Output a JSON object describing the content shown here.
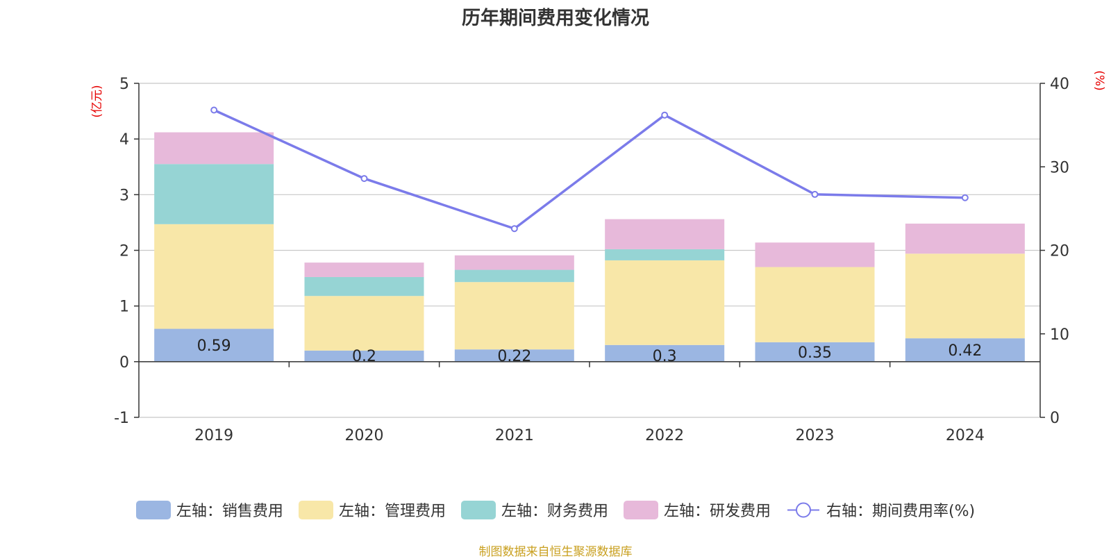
{
  "title": "历年期间费用变化情况",
  "source_note": "制图数据来自恒生聚源数据库",
  "chart_data": {
    "type": "bar",
    "stacked": true,
    "categories": [
      "2019",
      "2020",
      "2021",
      "2022",
      "2023",
      "2024"
    ],
    "left_axis": {
      "label": "(亿元)",
      "range": [
        -1,
        5
      ],
      "ticks": [
        -1,
        0,
        1,
        2,
        3,
        4,
        5
      ]
    },
    "right_axis": {
      "label": "(%)",
      "range": [
        0,
        40
      ],
      "ticks": [
        0,
        10,
        20,
        30,
        40
      ]
    },
    "series": [
      {
        "name": "左轴：销售费用",
        "axis": "left",
        "type": "bar",
        "color": "#9bb6e2",
        "values": [
          0.59,
          0.2,
          0.22,
          0.3,
          0.35,
          0.42
        ],
        "show_labels": true
      },
      {
        "name": "左轴：管理费用",
        "axis": "left",
        "type": "bar",
        "color": "#f8e7a8",
        "values": [
          1.88,
          0.98,
          1.21,
          1.52,
          1.35,
          1.52
        ]
      },
      {
        "name": "左轴：财务费用",
        "axis": "left",
        "type": "bar",
        "color": "#96d4d4",
        "values": [
          1.08,
          0.34,
          0.22,
          0.2,
          0.0,
          0.0
        ]
      },
      {
        "name": "左轴：研发费用",
        "axis": "left",
        "type": "bar",
        "color": "#e7b9da",
        "values": [
          0.57,
          0.26,
          0.26,
          0.54,
          0.44,
          0.54
        ]
      },
      {
        "name": "右轴：期间费用率(%)",
        "axis": "right",
        "type": "line",
        "color": "#7b7bea",
        "values": [
          36.8,
          28.6,
          22.6,
          36.2,
          26.7,
          26.3
        ]
      }
    ],
    "grid": true,
    "legend_position": "bottom"
  }
}
